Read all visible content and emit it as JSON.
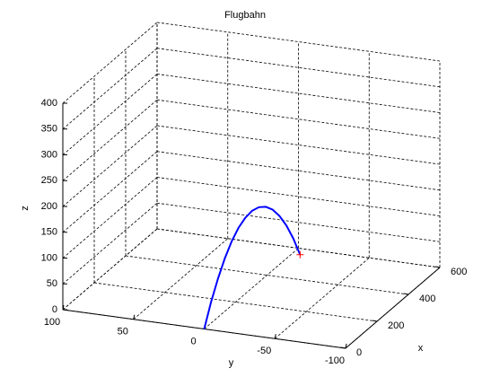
{
  "chart_data": {
    "type": "line3d",
    "title": "Flugbahn",
    "xlabel": "x",
    "ylabel": "y",
    "zlabel": "z",
    "xlim": [
      0,
      600
    ],
    "ylim": [
      -100,
      100
    ],
    "zlim": [
      0,
      400
    ],
    "xticks": [
      0,
      200,
      400,
      600
    ],
    "yticks": [
      100,
      50,
      0,
      -50,
      -100
    ],
    "zticks": [
      0,
      50,
      100,
      150,
      200,
      250,
      300,
      350,
      400
    ],
    "grid": true,
    "series": [
      {
        "color": "#0000ff",
        "x": [
          0,
          40,
          80,
          120,
          160,
          200,
          240,
          280,
          320,
          360,
          400,
          440,
          480,
          520,
          560
        ],
        "y": [
          0,
          -0.4,
          -0.8,
          -1.2,
          -1.6,
          -2,
          -2.4,
          -2.8,
          -3.2,
          -3.6,
          -4,
          -4.4,
          -4.8,
          -5.2,
          -5.6
        ],
        "z": [
          0,
          41.7,
          76.9,
          105.7,
          128.2,
          144.2,
          153.8,
          157,
          153.8,
          144.2,
          128.2,
          105.7,
          76.9,
          41.7,
          0
        ]
      }
    ],
    "marker": {
      "x": 560,
      "y": -5.6,
      "z": 0,
      "color": "#ff0000"
    }
  }
}
